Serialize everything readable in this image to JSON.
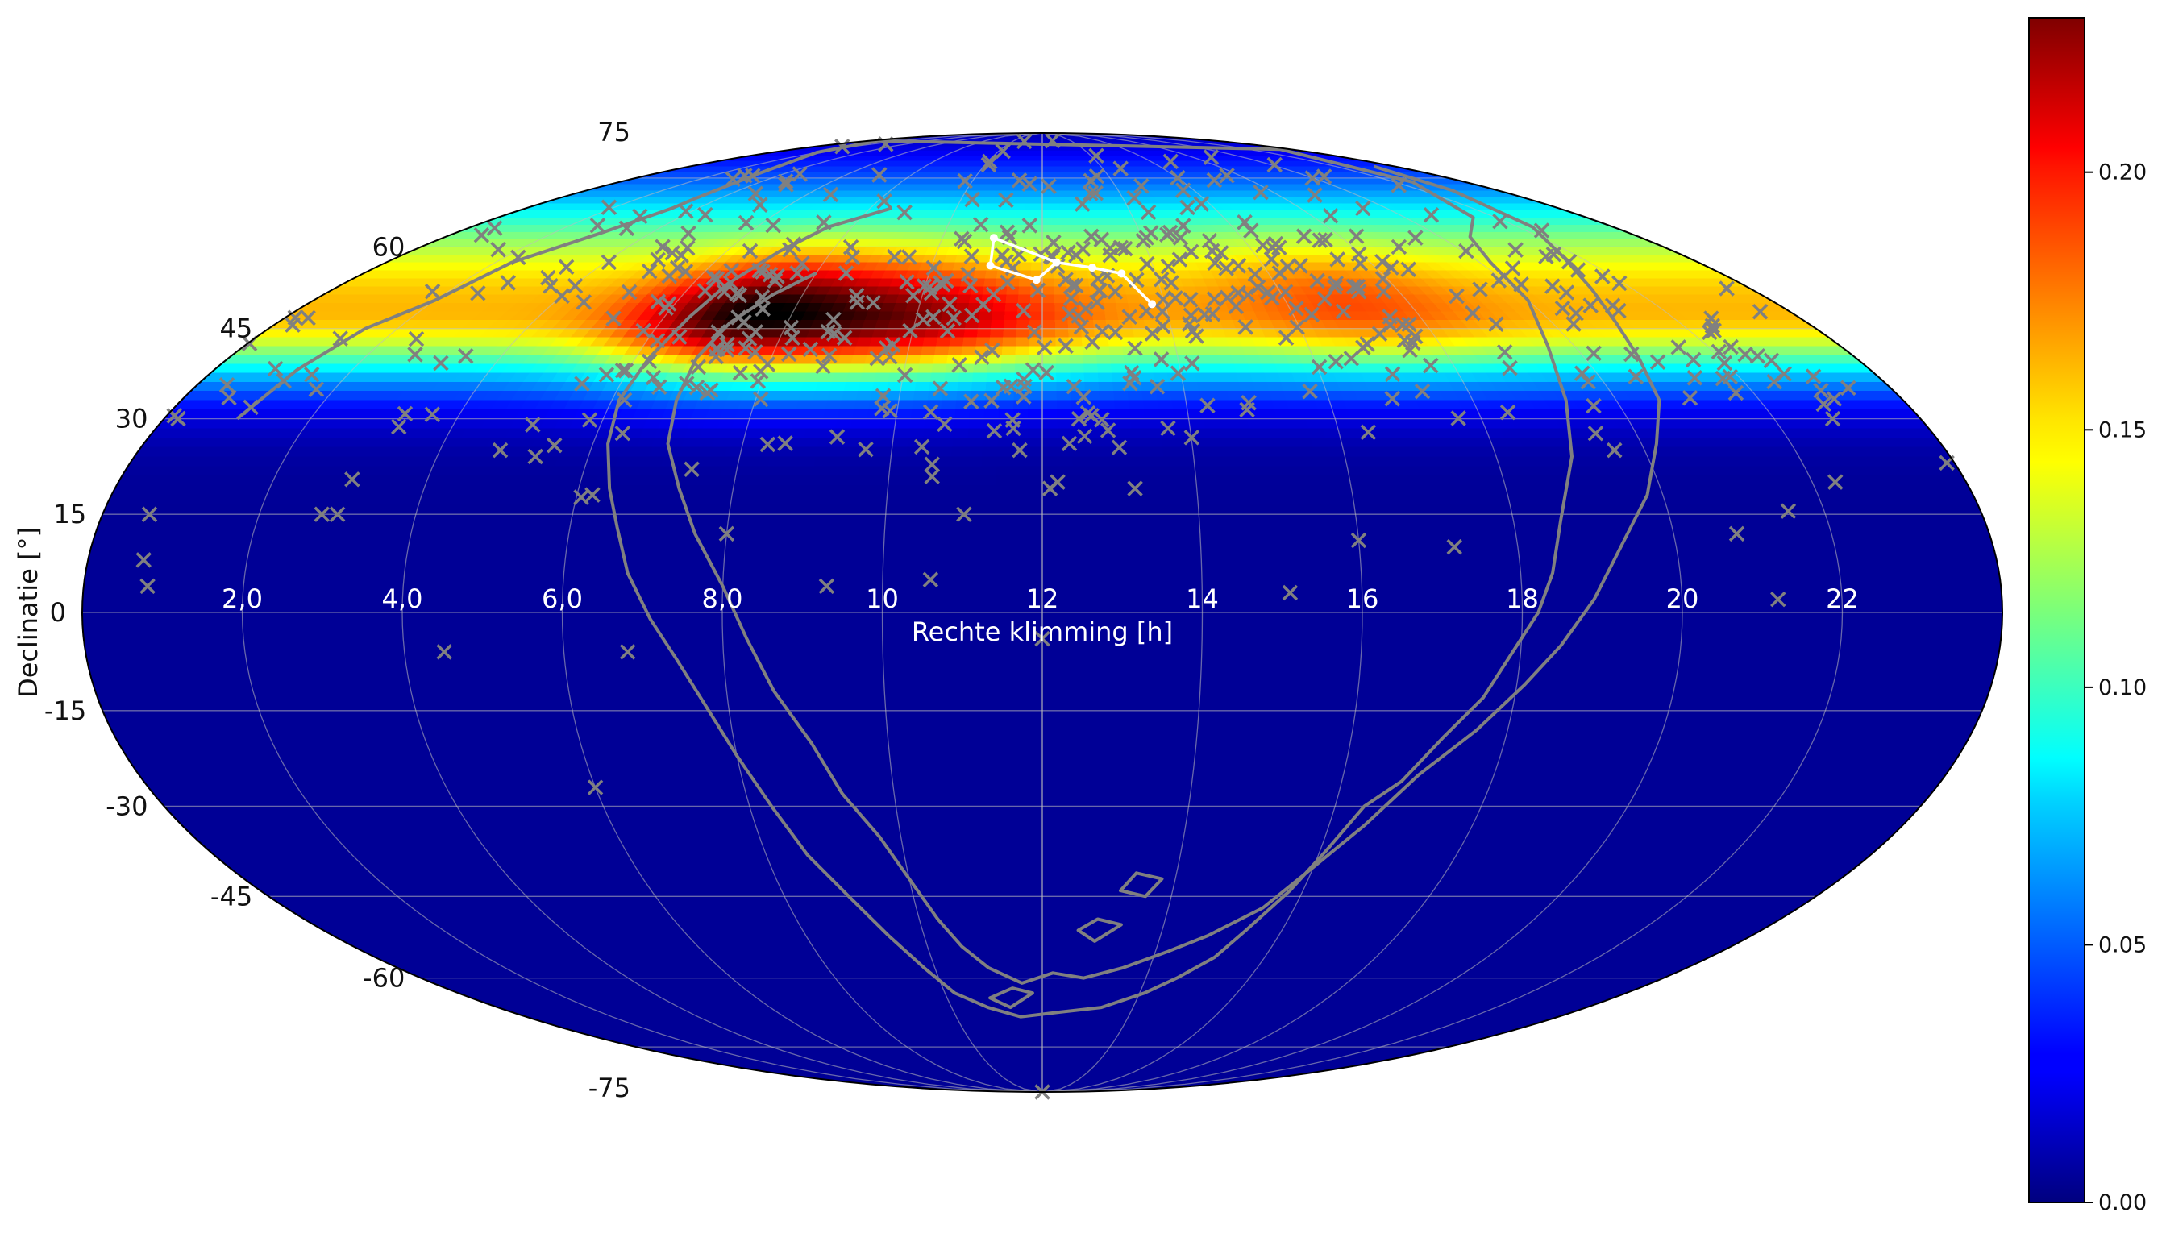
{
  "chart_data": {
    "type": "heatmap",
    "projection": "mollweide",
    "title": "",
    "xlabel": "Rechte klimming [h]",
    "ylabel": "Declinatie [°]",
    "x_ticks": [
      {
        "value": 22,
        "label": "22"
      },
      {
        "value": 20,
        "label": "20"
      },
      {
        "value": 18,
        "label": "18"
      },
      {
        "value": 16,
        "label": "16"
      },
      {
        "value": 14,
        "label": "14"
      },
      {
        "value": 12,
        "label": "12"
      },
      {
        "value": 10,
        "label": "10"
      },
      {
        "value": 8,
        "label": "8,0"
      },
      {
        "value": 6,
        "label": "6,0"
      },
      {
        "value": 4,
        "label": "4,0"
      },
      {
        "value": 2,
        "label": "2,0"
      }
    ],
    "y_ticks": [
      {
        "value": 75,
        "label": "75"
      },
      {
        "value": 60,
        "label": "60"
      },
      {
        "value": 45,
        "label": "45"
      },
      {
        "value": 30,
        "label": "30"
      },
      {
        "value": 15,
        "label": "15"
      },
      {
        "value": 0,
        "label": "0"
      },
      {
        "value": -15,
        "label": "-15"
      },
      {
        "value": -30,
        "label": "-30"
      },
      {
        "value": -45,
        "label": "-45"
      },
      {
        "value": -60,
        "label": "-60"
      },
      {
        "value": -75,
        "label": "-75"
      }
    ],
    "xlim": [
      0,
      24
    ],
    "ylim": [
      -90,
      90
    ],
    "x_direction": "decreasing-left-to-right",
    "grid": true,
    "colormap": "jet",
    "colorbar": {
      "placement": "right",
      "range": [
        0,
        0.23
      ],
      "ticks": [
        {
          "value": 0.0,
          "label": "0.00"
        },
        {
          "value": 0.05,
          "label": "0.05"
        },
        {
          "value": 0.1,
          "label": "0.10"
        },
        {
          "value": 0.15,
          "label": "0.15"
        },
        {
          "value": 0.2,
          "label": "0.20"
        }
      ]
    },
    "density_model": {
      "description_units": "RA in hours, Dec in degrees, values in colorbar units",
      "floor": 0.005,
      "components": [
        {
          "ra": 7.0,
          "dec": 47,
          "sigma_ra": 1.1,
          "sigma_dec": 7,
          "amplitude": 0.055
        },
        {
          "ra": 8.5,
          "dec": 47,
          "sigma_ra": 1.6,
          "sigma_dec": 8,
          "amplitude": 0.055
        },
        {
          "ra": 10.5,
          "dec": 45,
          "sigma_ra": 1.6,
          "sigma_dec": 7,
          "amplitude": 0.04
        },
        {
          "ra": 17.0,
          "dec": 50,
          "sigma_ra": 1.4,
          "sigma_dec": 8,
          "amplitude": 0.025
        }
      ],
      "band": {
        "center": 48,
        "sigma_north": 17,
        "sigma_south": 8.5,
        "amplitude": 0.155
      }
    },
    "contour_color": "#808080",
    "contour_outer": [
      [
        1.0,
        30
      ],
      [
        1.2,
        38
      ],
      [
        1.5,
        45
      ],
      [
        2.0,
        50
      ],
      [
        2.3,
        57
      ],
      [
        3.0,
        63
      ],
      [
        3.4,
        68
      ],
      [
        3.4,
        70
      ],
      [
        3.2,
        76
      ],
      [
        2.0,
        82
      ],
      [
        0.5,
        86
      ],
      [
        23.5,
        83
      ],
      [
        22.5,
        74
      ],
      [
        21.5,
        66
      ],
      [
        20.6,
        62
      ],
      [
        20.2,
        57
      ],
      [
        20.0,
        50
      ],
      [
        19.6,
        42
      ],
      [
        19.3,
        33
      ],
      [
        19.0,
        24
      ],
      [
        18.6,
        14
      ],
      [
        18.4,
        6
      ],
      [
        18.2,
        0
      ],
      [
        17.9,
        -6
      ],
      [
        17.6,
        -13
      ],
      [
        17.2,
        -19
      ],
      [
        16.8,
        -26
      ],
      [
        16.4,
        -30
      ],
      [
        16.1,
        -37
      ],
      [
        15.8,
        -44
      ],
      [
        15.4,
        -51
      ],
      [
        15.1,
        -56
      ],
      [
        14.6,
        -60
      ],
      [
        14.1,
        -63
      ],
      [
        13.3,
        -66
      ],
      [
        12.4,
        -67
      ],
      [
        11.5,
        -68
      ],
      [
        10.8,
        -66
      ],
      [
        10.2,
        -63
      ],
      [
        9.8,
        -58
      ],
      [
        9.4,
        -52
      ],
      [
        9.0,
        -45
      ],
      [
        8.6,
        -38
      ],
      [
        8.3,
        -30
      ],
      [
        8.0,
        -22
      ],
      [
        7.7,
        -14
      ],
      [
        7.4,
        -7
      ],
      [
        7.1,
        -1
      ],
      [
        6.8,
        6
      ],
      [
        6.6,
        13
      ],
      [
        6.4,
        19
      ],
      [
        6.2,
        26
      ],
      [
        6.1,
        33
      ],
      [
        6.2,
        40
      ],
      [
        6.4,
        47
      ],
      [
        6.6,
        53
      ],
      [
        7.0,
        59
      ],
      [
        7.5,
        64
      ],
      [
        8.5,
        68
      ]
    ],
    "contour_inner": [
      [
        23.3,
        78
      ],
      [
        22.8,
        72
      ],
      [
        22.3,
        64
      ],
      [
        21.7,
        58
      ],
      [
        21.3,
        52
      ],
      [
        21.0,
        46
      ],
      [
        20.8,
        40
      ],
      [
        20.6,
        33
      ],
      [
        20.2,
        26
      ],
      [
        19.8,
        18
      ],
      [
        19.3,
        10
      ],
      [
        18.9,
        2
      ],
      [
        18.5,
        -5
      ],
      [
        18.1,
        -11
      ],
      [
        17.6,
        -18
      ],
      [
        17.0,
        -25
      ],
      [
        16.5,
        -33
      ],
      [
        16.0,
        -40
      ],
      [
        15.5,
        -47
      ],
      [
        14.8,
        -52
      ],
      [
        14.2,
        -55
      ],
      [
        13.5,
        -58
      ],
      [
        12.8,
        -60
      ],
      [
        12.2,
        -59
      ],
      [
        11.6,
        -61
      ],
      [
        11.0,
        -58
      ],
      [
        10.6,
        -54
      ],
      [
        10.3,
        -49
      ],
      [
        10.0,
        -42
      ],
      [
        9.7,
        -35
      ],
      [
        9.3,
        -28
      ],
      [
        9.0,
        -20
      ],
      [
        8.6,
        -12
      ],
      [
        8.3,
        -4
      ],
      [
        8.0,
        4
      ],
      [
        7.6,
        12
      ],
      [
        7.3,
        19
      ],
      [
        7.0,
        26
      ],
      [
        6.9,
        33
      ],
      [
        6.9,
        40
      ],
      [
        7.1,
        46
      ],
      [
        7.5,
        51
      ],
      [
        8.0,
        55
      ]
    ],
    "islands": [
      [
        [
          13.8,
          -42
        ],
        [
          13.6,
          -45
        ],
        [
          13.2,
          -44
        ],
        [
          13.4,
          -41
        ],
        [
          13.8,
          -42
        ]
      ],
      [
        [
          13.3,
          -50
        ],
        [
          12.9,
          -53
        ],
        [
          12.6,
          -51
        ],
        [
          12.9,
          -49
        ],
        [
          13.3,
          -50
        ]
      ],
      [
        [
          11.8,
          -63
        ],
        [
          11.3,
          -66
        ],
        [
          10.9,
          -64
        ],
        [
          11.4,
          -62
        ],
        [
          11.8,
          -63
        ]
      ]
    ],
    "marker_color": "#808080",
    "scatter": {
      "seed": 137,
      "clusters": [
        {
          "ra": 7.0,
          "dec": 48,
          "sigma_ra": 1.2,
          "sigma_dec": 9,
          "count": 60
        },
        {
          "ra": 10.5,
          "dec": 50,
          "sigma_ra": 1.8,
          "sigma_dec": 12,
          "count": 90
        },
        {
          "ra": 14.0,
          "dec": 55,
          "sigma_ra": 1.6,
          "sigma_dec": 11,
          "count": 80
        },
        {
          "ra": 17.5,
          "dec": 53,
          "sigma_ra": 1.5,
          "sigma_dec": 10,
          "count": 70
        },
        {
          "ra": 4.0,
          "dec": 60,
          "sigma_ra": 1.4,
          "sigma_dec": 10,
          "count": 45
        },
        {
          "ra": 20.5,
          "dec": 50,
          "sigma_ra": 1.3,
          "sigma_dec": 10,
          "count": 40
        },
        {
          "ra": 12.0,
          "dec": 35,
          "sigma_ra": 3.5,
          "sigma_dec": 7,
          "count": 50
        },
        {
          "ra": 1.5,
          "dec": 36,
          "sigma_ra": 1.5,
          "sigma_dec": 6,
          "count": 22
        },
        {
          "ra": 22.5,
          "dec": 38,
          "sigma_ra": 1.2,
          "sigma_dec": 6,
          "count": 20
        }
      ],
      "explicit": [
        [
          0.6,
          15
        ],
        [
          23.9,
          23
        ],
        [
          23.4,
          35
        ],
        [
          22.8,
          30
        ],
        [
          22.3,
          20
        ],
        [
          21.2,
          2
        ],
        [
          20.8,
          12
        ],
        [
          19.6,
          25
        ],
        [
          17.2,
          10
        ],
        [
          16.0,
          11
        ],
        [
          15.1,
          3
        ],
        [
          13.2,
          19
        ],
        [
          12.2,
          20
        ],
        [
          11.0,
          15
        ],
        [
          10.6,
          5
        ],
        [
          9.3,
          4
        ],
        [
          8.0,
          12
        ],
        [
          6.8,
          -6
        ],
        [
          4.5,
          -6
        ],
        [
          3.0,
          15
        ],
        [
          2.8,
          15
        ],
        [
          0.7,
          8
        ],
        [
          0.8,
          4
        ],
        [
          6.0,
          -27
        ],
        [
          12.0,
          -4
        ],
        [
          12.0,
          -90
        ],
        [
          4.8,
          25
        ],
        [
          5.3,
          24
        ],
        [
          6.2,
          18
        ],
        [
          11.7,
          25
        ],
        [
          12.1,
          19
        ]
      ]
    },
    "asterism": {
      "color": "#ffffff",
      "stars": [
        {
          "ra": 13.79,
          "dec": 49.3
        },
        {
          "ra": 13.4,
          "dec": 54.9
        },
        {
          "ra": 12.9,
          "dec": 56.0
        },
        {
          "ra": 12.26,
          "dec": 57.0
        },
        {
          "ra": 11.9,
          "dec": 53.7
        },
        {
          "ra": 11.03,
          "dec": 61.8
        },
        {
          "ra": 11.06,
          "dec": 56.4
        }
      ],
      "path_order": [
        0,
        1,
        2,
        3,
        4,
        6,
        5,
        3
      ]
    }
  }
}
